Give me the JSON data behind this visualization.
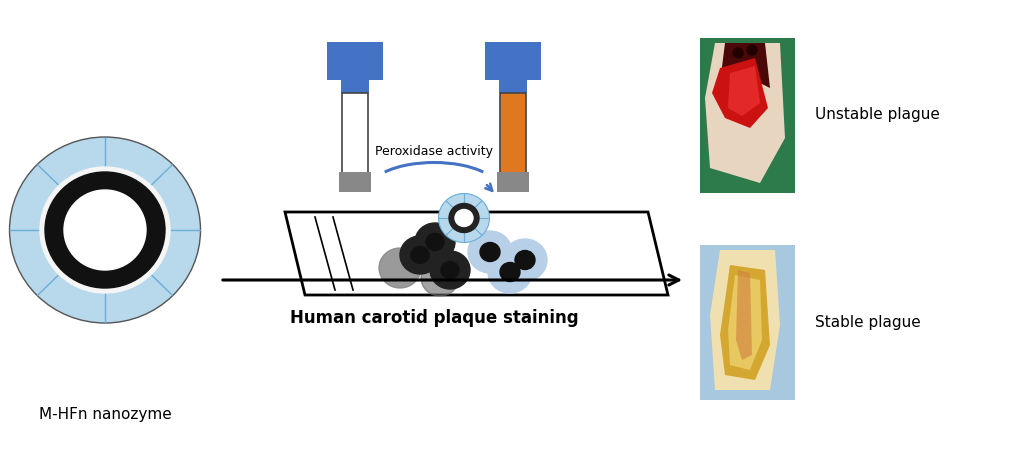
{
  "bg_color": "#ffffff",
  "label_nanozyme": "M-HFn nanozyme",
  "label_staining": "Human carotid plaque staining",
  "label_peroxidase": "Peroxidase activity",
  "label_unstable": "Unstable plague",
  "label_stable": "Stable plague",
  "blue_color": "#4472C4",
  "orange_color": "#E07820",
  "light_blue_cell": "#b8cfe8",
  "nanozyme_outer": "#b8d8ec",
  "nanozyme_ring": "#111111",
  "nanozyme_white": "#f5f5f5",
  "nanozyme_center": "#ffffff",
  "gray_plug": "#888888",
  "arc_color": "#4472C4",
  "slide_edge": "#111111",
  "arrow_color": "#111111"
}
